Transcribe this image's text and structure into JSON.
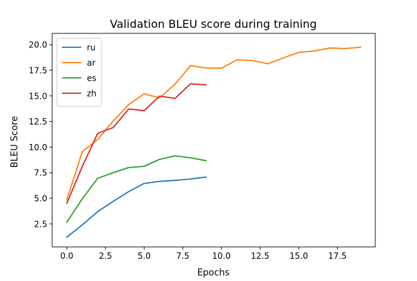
{
  "chart_data": {
    "type": "line",
    "title": "Validation BLEU score during training",
    "xlabel": "Epochs",
    "ylabel": "BLEU Score",
    "xlim": [
      -0.95,
      19.95
    ],
    "ylim": [
      0.25,
      21.1
    ],
    "xticks": [
      0.0,
      2.5,
      5.0,
      7.5,
      10.0,
      12.5,
      15.0,
      17.5
    ],
    "xtick_labels": [
      "0.0",
      "2.5",
      "5.0",
      "7.5",
      "10.0",
      "12.5",
      "15.0",
      "17.5"
    ],
    "yticks": [
      2.5,
      5.0,
      7.5,
      10.0,
      12.5,
      15.0,
      17.5,
      20.0
    ],
    "ytick_labels": [
      "2.5",
      "5.0",
      "7.5",
      "10.0",
      "12.5",
      "15.0",
      "17.5",
      "20.0"
    ],
    "grid": false,
    "legend_position": "top-left",
    "series": [
      {
        "name": "ru",
        "color": "#1f77b4",
        "x": [
          0,
          1,
          2,
          3,
          4,
          5,
          6,
          7,
          8,
          9
        ],
        "y": [
          1.2,
          2.4,
          3.7,
          4.7,
          5.65,
          6.45,
          6.65,
          6.75,
          6.88,
          7.07
        ]
      },
      {
        "name": "ar",
        "color": "#ff7f0e",
        "x": [
          0,
          1,
          2,
          3,
          4,
          5,
          6,
          7,
          8,
          9,
          10,
          11,
          12,
          13,
          14,
          15,
          16,
          17,
          18,
          19
        ],
        "y": [
          4.85,
          9.55,
          10.75,
          12.55,
          14.15,
          15.2,
          14.8,
          16.15,
          17.95,
          17.72,
          17.7,
          18.52,
          18.45,
          18.13,
          18.7,
          19.25,
          19.38,
          19.67,
          19.62,
          19.75
        ]
      },
      {
        "name": "es",
        "color": "#2ca02c",
        "x": [
          0,
          1,
          2,
          3,
          4,
          5,
          6,
          7,
          8,
          9
        ],
        "y": [
          2.65,
          4.95,
          6.95,
          7.5,
          8.0,
          8.12,
          8.8,
          9.15,
          8.95,
          8.67
        ]
      },
      {
        "name": "zh",
        "color": "#d62728",
        "x": [
          0,
          1,
          2,
          3,
          4,
          5,
          6,
          7,
          8,
          9
        ],
        "y": [
          4.5,
          8.1,
          11.35,
          11.9,
          13.72,
          13.55,
          14.98,
          14.75,
          16.18,
          16.07
        ]
      }
    ]
  }
}
